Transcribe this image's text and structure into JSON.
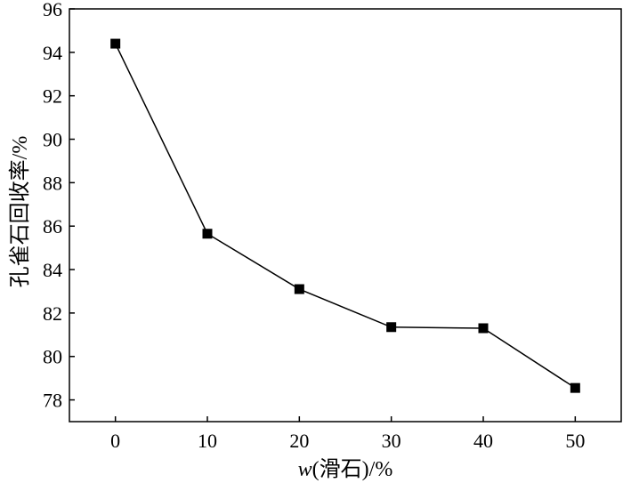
{
  "chart_data": {
    "type": "line",
    "x": [
      0,
      10,
      20,
      30,
      40,
      50
    ],
    "series": [
      {
        "values": [
          94.4,
          85.65,
          83.1,
          81.35,
          81.3,
          78.55
        ],
        "color": "#000000",
        "marker": "square"
      }
    ],
    "xlabel_var": "w",
    "xlabel_rest": "(滑石)/%",
    "ylabel": "孔雀石回收率/%",
    "xlim": [
      -5,
      55
    ],
    "ylim": [
      77,
      96
    ],
    "xticks": [
      0,
      10,
      20,
      30,
      40,
      50
    ],
    "yticks": [
      78,
      80,
      82,
      84,
      86,
      88,
      90,
      92,
      94,
      96
    ],
    "grid": false
  }
}
